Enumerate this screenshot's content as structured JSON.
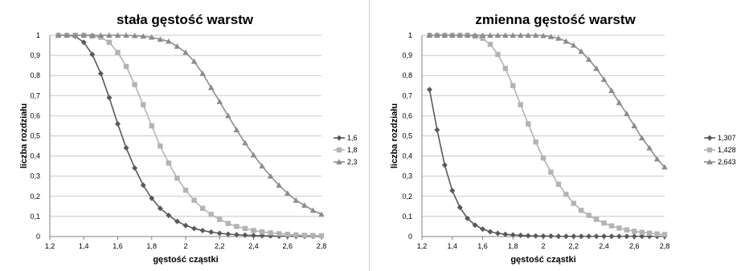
{
  "chart_data": [
    {
      "type": "line",
      "title": "stała gęstość warstw",
      "xlabel": "gęstość cząstki",
      "ylabel": "liczba rozdziału",
      "xlim": [
        1.2,
        2.8
      ],
      "ylim": [
        0,
        1
      ],
      "x_ticks": [
        "1,2",
        "1,4",
        "1,6",
        "1,8",
        "2",
        "2,2",
        "2,4",
        "2,6",
        "2,8"
      ],
      "y_ticks": [
        "0",
        "0,1",
        "0,2",
        "0,3",
        "0,4",
        "0,5",
        "0,6",
        "0,7",
        "0,8",
        "0,9",
        "1"
      ],
      "grid": "horizontal",
      "legend_position": "right",
      "x": [
        1.25,
        1.3,
        1.35,
        1.4,
        1.45,
        1.5,
        1.55,
        1.6,
        1.65,
        1.7,
        1.75,
        1.8,
        1.85,
        1.9,
        1.95,
        2.0,
        2.05,
        2.1,
        2.15,
        2.2,
        2.25,
        2.3,
        2.35,
        2.4,
        2.45,
        2.5,
        2.55,
        2.6,
        2.65,
        2.7,
        2.75,
        2.8
      ],
      "series": [
        {
          "name": "1,6",
          "marker": "diamond",
          "color": "#595959",
          "values": [
            1.0,
            1.0,
            0.995,
            0.965,
            0.905,
            0.81,
            0.69,
            0.56,
            0.44,
            0.34,
            0.255,
            0.19,
            0.14,
            0.105,
            0.075,
            0.055,
            0.04,
            0.03,
            0.022,
            0.016,
            0.012,
            0.009,
            0.007,
            0.005,
            0.004,
            0.003,
            0.002,
            0.002,
            0.001,
            0.001,
            0.001,
            0.001
          ]
        },
        {
          "name": "1,8",
          "marker": "square",
          "color": "#b3b3b3",
          "values": [
            1.0,
            1.0,
            1.0,
            1.0,
            0.995,
            0.99,
            0.965,
            0.915,
            0.845,
            0.755,
            0.655,
            0.55,
            0.45,
            0.365,
            0.29,
            0.23,
            0.18,
            0.14,
            0.11,
            0.085,
            0.065,
            0.05,
            0.04,
            0.03,
            0.023,
            0.018,
            0.014,
            0.011,
            0.008,
            0.006,
            0.005,
            0.004
          ]
        },
        {
          "name": "2,3",
          "marker": "triangle",
          "color": "#8c8c8c",
          "values": [
            1.0,
            1.0,
            1.0,
            1.0,
            1.0,
            1.0,
            1.0,
            1.0,
            1.0,
            0.998,
            0.995,
            0.99,
            0.98,
            0.97,
            0.945,
            0.915,
            0.87,
            0.81,
            0.74,
            0.67,
            0.6,
            0.53,
            0.465,
            0.405,
            0.35,
            0.3,
            0.255,
            0.215,
            0.18,
            0.155,
            0.13,
            0.11
          ]
        }
      ]
    },
    {
      "type": "line",
      "title": "zmienna gęstość warstw",
      "xlabel": "gęstość cząstki",
      "ylabel": "liczba rozdziału",
      "xlim": [
        1.2,
        2.8
      ],
      "ylim": [
        0,
        1
      ],
      "x_ticks": [
        "1,2",
        "1,4",
        "1,6",
        "1,8",
        "2",
        "2,2",
        "2,4",
        "2,6",
        "2,8"
      ],
      "y_ticks": [
        "0",
        "0,1",
        "0,2",
        "0,3",
        "0,4",
        "0,5",
        "0,6",
        "0,7",
        "0,8",
        "0,9",
        "1"
      ],
      "grid": "horizontal",
      "legend_position": "right",
      "x": [
        1.25,
        1.3,
        1.35,
        1.4,
        1.45,
        1.5,
        1.55,
        1.6,
        1.65,
        1.7,
        1.75,
        1.8,
        1.85,
        1.9,
        1.95,
        2.0,
        2.05,
        2.1,
        2.15,
        2.2,
        2.25,
        2.3,
        2.35,
        2.4,
        2.45,
        2.5,
        2.55,
        2.6,
        2.65,
        2.7,
        2.75,
        2.8
      ],
      "series": [
        {
          "name": "1,307",
          "marker": "diamond",
          "color": "#595959",
          "values": [
            0.73,
            0.53,
            0.355,
            0.228,
            0.145,
            0.09,
            0.057,
            0.037,
            0.024,
            0.016,
            0.011,
            0.008,
            0.006,
            0.004,
            0.003,
            0.002,
            0.002,
            0.001,
            0.001,
            0.001,
            0.001,
            0.001,
            0.001,
            0.001,
            0.001,
            0.001,
            0.001,
            0.001,
            0.001,
            0.001,
            0.001,
            0.001
          ]
        },
        {
          "name": "1,428",
          "marker": "square",
          "color": "#b3b3b3",
          "values": [
            1.0,
            1.0,
            1.0,
            1.0,
            1.0,
            1.0,
            0.995,
            0.985,
            0.955,
            0.905,
            0.835,
            0.75,
            0.655,
            0.56,
            0.47,
            0.39,
            0.32,
            0.26,
            0.21,
            0.165,
            0.13,
            0.105,
            0.085,
            0.067,
            0.053,
            0.042,
            0.033,
            0.026,
            0.021,
            0.017,
            0.013,
            0.01
          ]
        },
        {
          "name": "2,643",
          "marker": "triangle",
          "color": "#8c8c8c",
          "values": [
            1.0,
            1.0,
            1.0,
            1.0,
            1.0,
            1.0,
            1.0,
            1.0,
            1.0,
            1.0,
            1.0,
            1.0,
            1.0,
            1.0,
            1.0,
            0.998,
            0.993,
            0.985,
            0.97,
            0.95,
            0.92,
            0.88,
            0.835,
            0.78,
            0.725,
            0.665,
            0.61,
            0.55,
            0.49,
            0.44,
            0.385,
            0.345
          ]
        }
      ]
    }
  ]
}
